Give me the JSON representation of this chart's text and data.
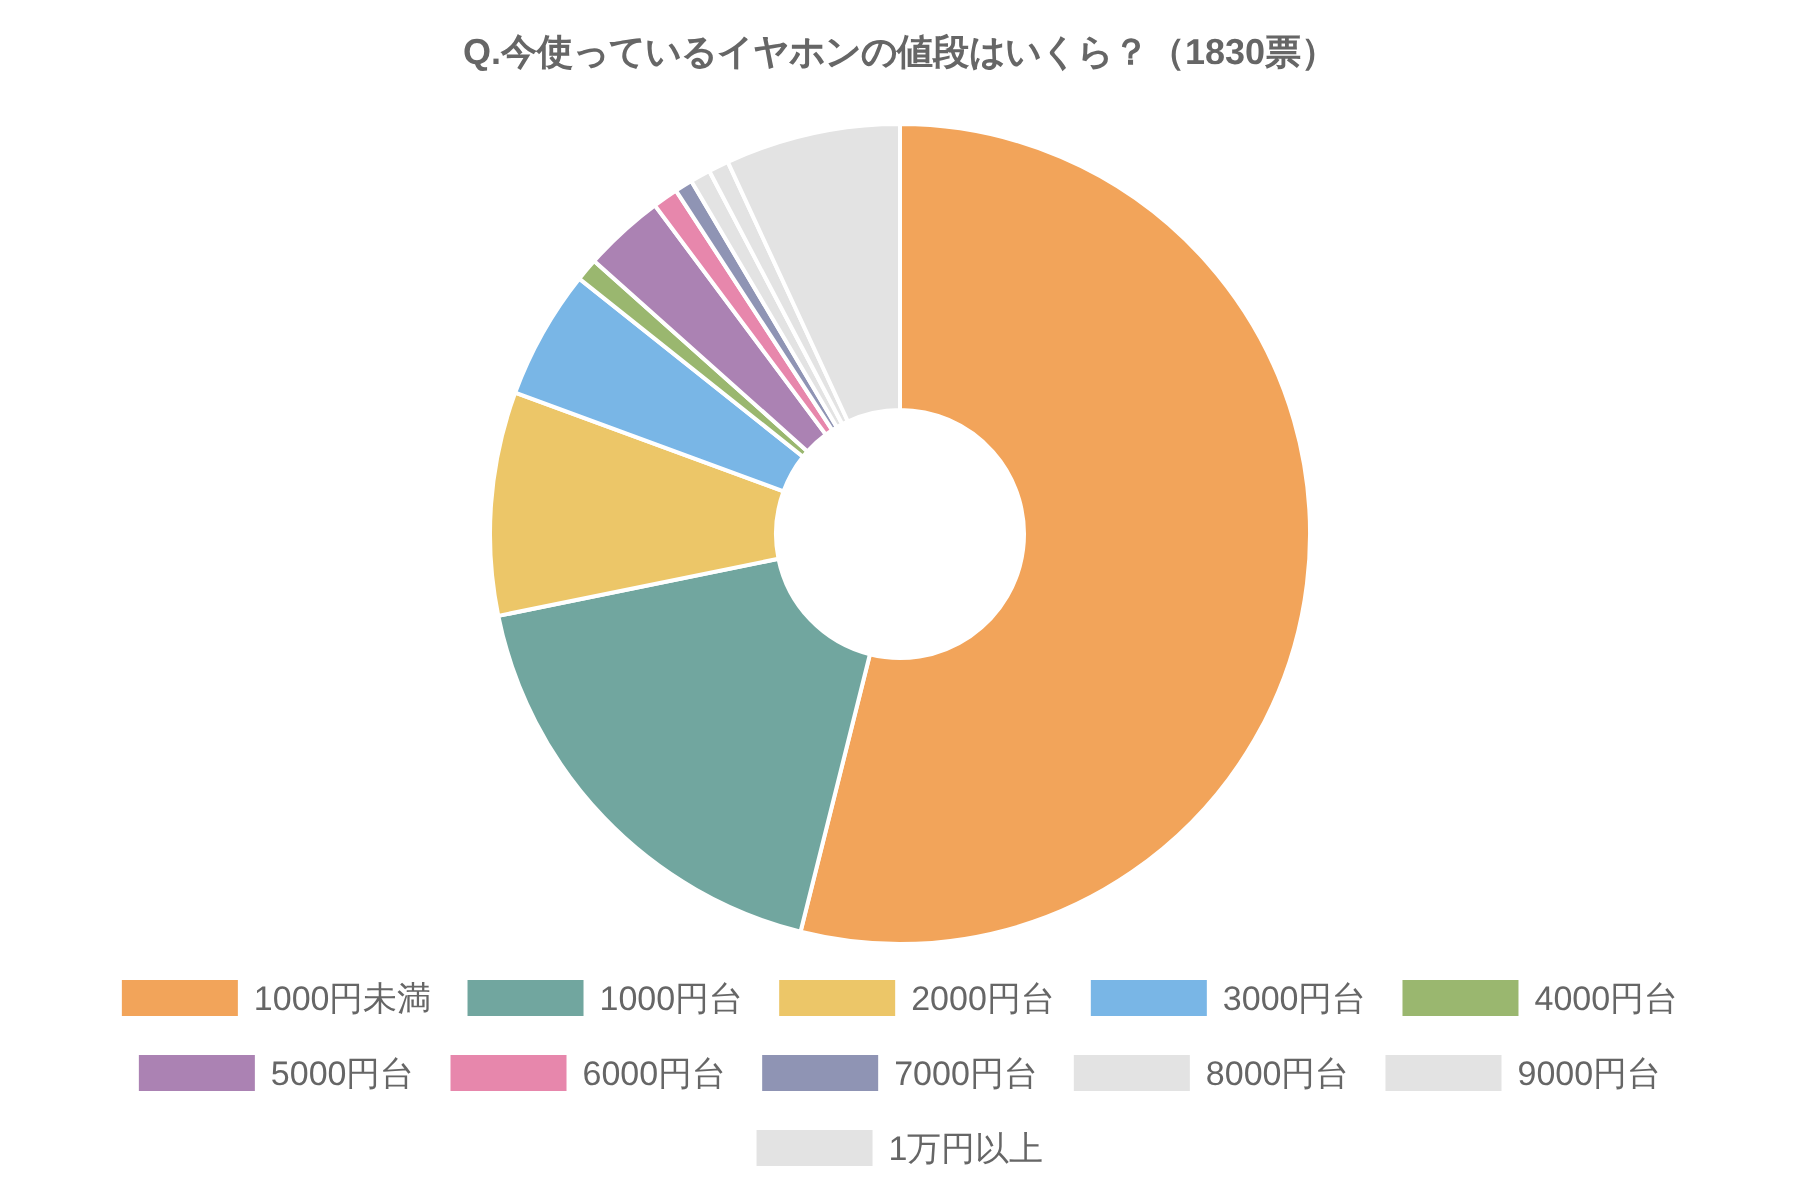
{
  "chart_data": {
    "type": "donut",
    "title": "Q.今使っているイヤホンの値段はいくら？（1830票）",
    "categories": [
      "1000円未満",
      "1000円台",
      "2000円台",
      "3000円台",
      "4000円台",
      "5000円台",
      "6000円台",
      "7000円台",
      "8000円台",
      "9000円台",
      "1万円以上"
    ],
    "values": [
      53.9,
      17.9,
      8.8,
      5.1,
      0.9,
      3.2,
      1.0,
      0.7,
      0.8,
      0.8,
      6.9
    ],
    "colors": [
      "#f2a45a",
      "#71a69f",
      "#ecc668",
      "#79b6e6",
      "#9ab76f",
      "#ab82b3",
      "#e787ac",
      "#8f94b4",
      "#e3e3e3",
      "#e3e3e3",
      "#e3e3e3"
    ],
    "legend": "bottom"
  }
}
